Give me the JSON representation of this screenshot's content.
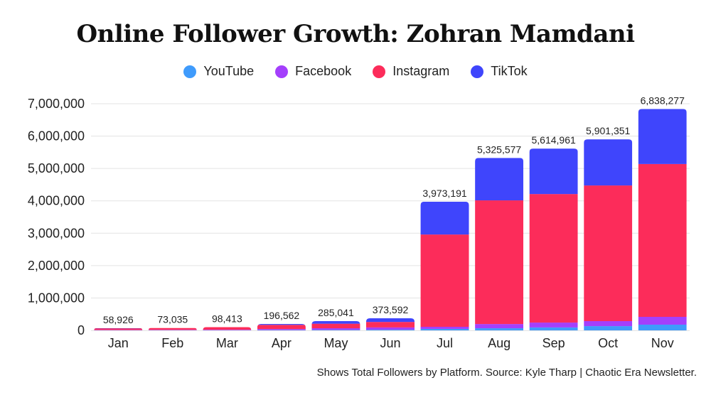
{
  "chart_data": {
    "type": "bar",
    "stacked": true,
    "title": "Online Follower Growth: Zohran Mamdani",
    "xlabel": "",
    "ylabel": "",
    "ylim": [
      0,
      7000000
    ],
    "yticks": [
      0,
      1000000,
      2000000,
      3000000,
      4000000,
      5000000,
      6000000,
      7000000
    ],
    "ytick_labels": [
      "0",
      "1,000,000",
      "2,000,000",
      "3,000,000",
      "4,000,000",
      "5,000,000",
      "6,000,000",
      "7,000,000"
    ],
    "grid": true,
    "legend_position": "top-center",
    "categories": [
      "Jan",
      "Feb",
      "Mar",
      "Apr",
      "May",
      "Jun",
      "Jul",
      "Aug",
      "Sep",
      "Oct",
      "Nov"
    ],
    "totals": [
      58926,
      73035,
      98413,
      196562,
      285041,
      373592,
      3973191,
      5325577,
      5614961,
      5901351,
      6838277
    ],
    "total_labels": [
      "58,926",
      "73,035",
      "98,413",
      "196,562",
      "285,041",
      "373,592",
      "3,973,191",
      "5,325,577",
      "5,614,961",
      "5,901,351",
      "6,838,277"
    ],
    "series": [
      {
        "name": "YouTube",
        "color": "#3f9bfc",
        "values": [
          3000,
          4000,
          5000,
          10000,
          15000,
          20000,
          45000,
          65000,
          90000,
          130000,
          176000
        ]
      },
      {
        "name": "Facebook",
        "color": "#a43ffc",
        "values": [
          10000,
          12000,
          15000,
          30000,
          50000,
          70000,
          65000,
          130000,
          150000,
          155000,
          241000
        ]
      },
      {
        "name": "Instagram",
        "color": "#fc2c5a",
        "values": [
          45926,
          57035,
          78413,
          129562,
          140041,
          169592,
          2850000,
          3820000,
          3970000,
          4190000,
          4720000
        ]
      },
      {
        "name": "TikTok",
        "color": "#3f45fc",
        "values": [
          0,
          0,
          0,
          27000,
          80000,
          114000,
          1013191,
          1310577,
          1404961,
          1426351,
          1701277
        ]
      }
    ]
  },
  "footer": "Shows Total Followers by Platform. Source: Kyle Tharp | Chaotic Era Newsletter."
}
